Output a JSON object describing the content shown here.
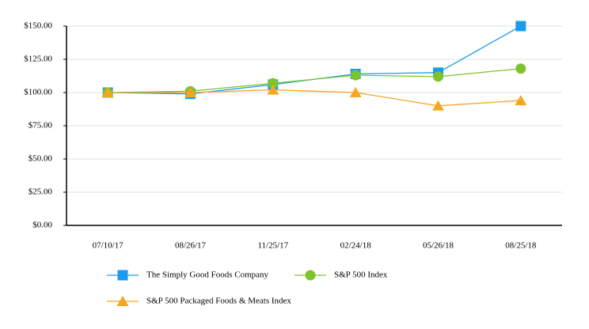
{
  "chart_data": {
    "type": "line",
    "categories": [
      "07/10/17",
      "08/26/17",
      "11/25/17",
      "02/24/18",
      "05/26/18",
      "08/25/18"
    ],
    "series": [
      {
        "name": "The Simply Good Foods Company",
        "color": "#1a9bf0",
        "marker": "square",
        "values": [
          100,
          99,
          106,
          114,
          115,
          150
        ]
      },
      {
        "name": "S&P 500 Index",
        "color": "#7dc42a",
        "marker": "circle",
        "values": [
          100,
          101,
          107,
          113,
          112,
          118
        ]
      },
      {
        "name": "S&P 500 Packaged Foods & Meats Index",
        "color": "#f5a623",
        "marker": "triangle",
        "values": [
          100,
          100,
          102,
          100,
          90,
          94
        ]
      }
    ],
    "ylim": [
      0,
      150
    ],
    "yticks": [
      {
        "value": 0,
        "label": "$0.00"
      },
      {
        "value": 25,
        "label": "$25.00"
      },
      {
        "value": 50,
        "label": "$50.00"
      },
      {
        "value": 75,
        "label": "$75.00"
      },
      {
        "value": 100,
        "label": "$100.00"
      },
      {
        "value": 125,
        "label": "$125.00"
      },
      {
        "value": 150,
        "label": "$150.00"
      }
    ],
    "grid": true
  }
}
